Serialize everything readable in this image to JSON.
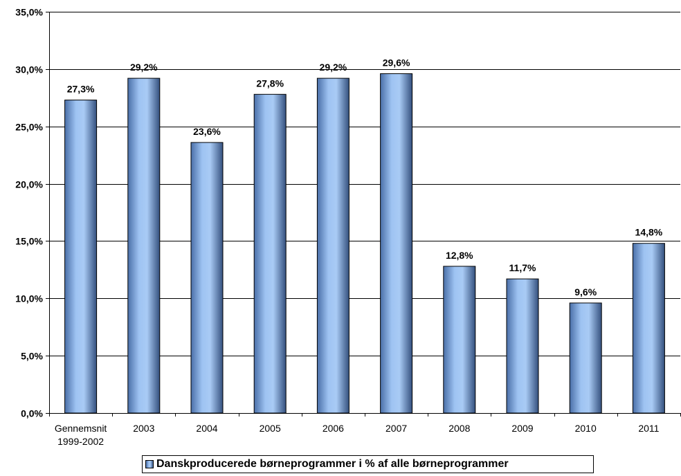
{
  "chart_data": {
    "type": "bar",
    "categories": [
      "Gennemsnit\n1999-2002",
      "2003",
      "2004",
      "2005",
      "2006",
      "2007",
      "2008",
      "2009",
      "2010",
      "2011"
    ],
    "series": [
      {
        "name": "Danskproducerede børneprogrammer i % af alle børneprogrammer",
        "values": [
          27.3,
          29.2,
          23.6,
          27.8,
          29.2,
          29.6,
          12.8,
          11.7,
          9.6,
          14.8
        ],
        "data_labels": [
          "27,3%",
          "29,2%",
          "23,6%",
          "27,8%",
          "29,2%",
          "29,6%",
          "12,8%",
          "11,7%",
          "9,6%",
          "14,8%"
        ]
      }
    ],
    "ylim": [
      0,
      35
    ],
    "yticks": [
      0,
      5,
      10,
      15,
      20,
      25,
      30,
      35
    ],
    "ytick_labels": [
      "0,0%",
      "5,0%",
      "10,0%",
      "15,0%",
      "20,0%",
      "25,0%",
      "30,0%",
      "35,0%"
    ],
    "grid": true,
    "legend": {
      "position": "bottom",
      "label": "Danskproducerede børneprogrammer i % af alle børneprogrammer"
    },
    "colors": {
      "bar_light": "#a9cbf5",
      "bar_dark": "#3a5a8a",
      "grid": "#000000"
    }
  }
}
